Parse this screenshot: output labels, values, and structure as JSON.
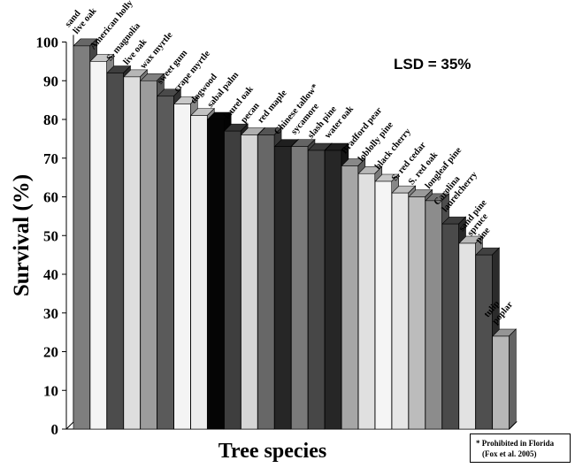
{
  "chart_data": {
    "type": "bar",
    "title": "",
    "xlabel": "Tree species",
    "ylabel": "Survival (%)",
    "ylim": [
      0,
      100
    ],
    "yticks": [
      0,
      10,
      20,
      30,
      40,
      50,
      60,
      70,
      80,
      90,
      100
    ],
    "grid": false,
    "annotation": "LSD = 35%",
    "categories": [
      {
        "lines": [
          "sand",
          "live oak"
        ]
      },
      {
        "lines": [
          "American holly"
        ]
      },
      {
        "lines": [
          "S. magnolia"
        ]
      },
      {
        "lines": [
          "live oak"
        ]
      },
      {
        "lines": [
          "wax myrtle"
        ]
      },
      {
        "lines": [
          "sweet gum"
        ]
      },
      {
        "lines": [
          "crape myrtle"
        ]
      },
      {
        "lines": [
          "dogwood"
        ]
      },
      {
        "lines": [
          "sabal palm"
        ]
      },
      {
        "lines": [
          "laurel oak"
        ]
      },
      {
        "lines": [
          "pecan"
        ]
      },
      {
        "lines": [
          "red maple"
        ]
      },
      {
        "lines": [
          "Chinese tallow*"
        ]
      },
      {
        "lines": [
          "sycamore"
        ]
      },
      {
        "lines": [
          "slash pine"
        ]
      },
      {
        "lines": [
          "water oak"
        ]
      },
      {
        "lines": [
          "Bradford pear"
        ]
      },
      {
        "lines": [
          "loblolly pine"
        ]
      },
      {
        "lines": [
          "black cherry"
        ]
      },
      {
        "lines": [
          "S. red cedar"
        ]
      },
      {
        "lines": [
          "S. red oak"
        ]
      },
      {
        "lines": [
          "longleaf pine"
        ]
      },
      {
        "lines": [
          "Carolina",
          "laurelcherry"
        ]
      },
      {
        "lines": [
          "sand pine"
        ]
      },
      {
        "lines": [
          "spruce",
          "pine"
        ]
      },
      {
        "lines": [
          "tulip",
          "poplar"
        ]
      }
    ],
    "values": [
      99,
      95,
      92,
      91,
      90,
      86,
      84,
      81,
      80,
      77,
      76,
      76,
      73,
      73,
      72,
      72,
      68,
      66,
      64,
      61,
      60,
      59,
      53,
      48,
      45,
      24
    ],
    "bar_colors": [
      "#7e7e7e",
      "#f4f4f4",
      "#4c4c4c",
      "#dedede",
      "#9c9c9c",
      "#5a5a5a",
      "#f4f4f4",
      "#ececec",
      "#050505",
      "#3e3e3e",
      "#d6d6d6",
      "#676767",
      "#262626",
      "#7a7a7a",
      "#474747",
      "#262626",
      "#a6a6a6",
      "#e0e0e0",
      "#f5f5f5",
      "#e6e6e6",
      "#bcbcbc",
      "#8c8c8c",
      "#4a4a4a",
      "#e2e2e2",
      "#4f4f4f",
      "#b6b6b6"
    ]
  },
  "footnote": {
    "line1": "*  Prohibited in Florida",
    "line2": "(Fox et al. 2005)"
  }
}
